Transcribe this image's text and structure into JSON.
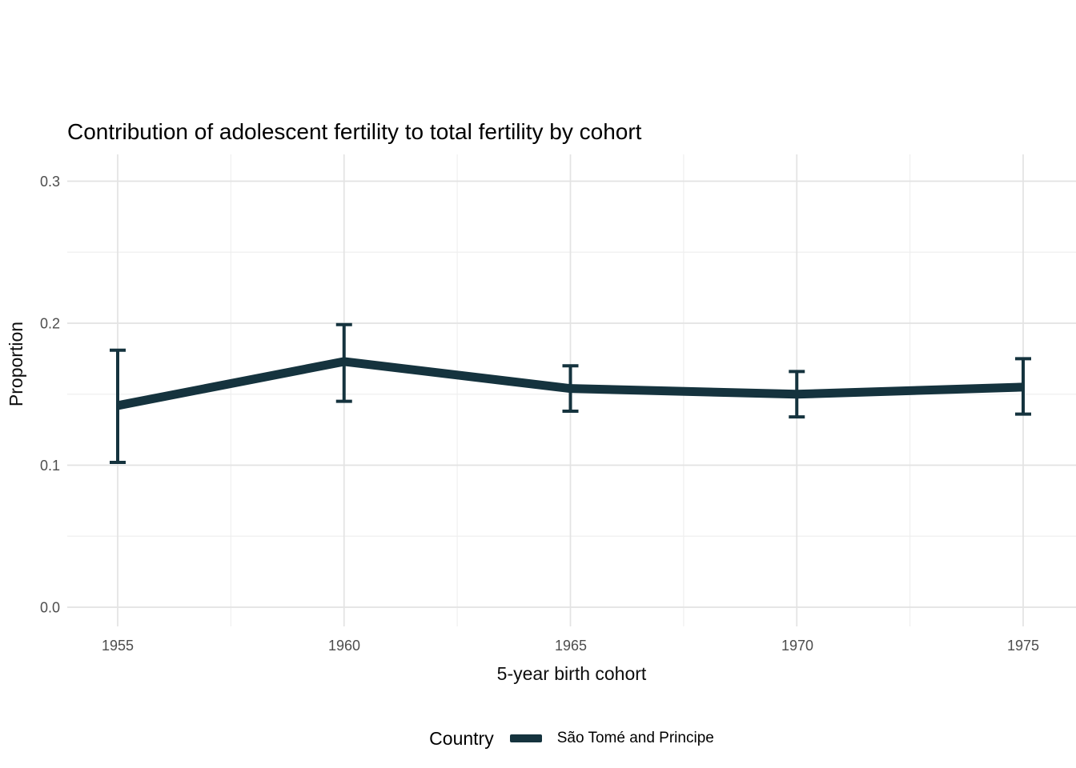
{
  "title": "Contribution of adolescent fertility to total fertility by cohort",
  "legend": {
    "title": "Country",
    "items": [
      {
        "label": "São Tomé and Principe",
        "swatch_color": "#15333E"
      }
    ]
  },
  "chart_data": {
    "type": "line",
    "title": "Contribution of adolescent fertility to total fertility by cohort",
    "xlabel": "5-year birth cohort",
    "ylabel": "Proportion",
    "categories": [
      1955,
      1960,
      1965,
      1970,
      1975
    ],
    "x_tick_labels": [
      "1955",
      "1960",
      "1965",
      "1970",
      "1975"
    ],
    "y_ticks": [
      0.0,
      0.1,
      0.2,
      0.3
    ],
    "y_tick_labels": [
      "0.0",
      "0.1",
      "0.2",
      "0.3"
    ],
    "y_minor_ticks": [
      0.05,
      0.15,
      0.25
    ],
    "x_minor_ticks": [
      1957.5,
      1962.5,
      1967.5,
      1972.5
    ],
    "ylim": [
      0.0,
      0.3
    ],
    "grid": "major-and-minor",
    "legend_position": "bottom",
    "colors": {
      "series": "#15333E",
      "grid_major": "#e3e3e3",
      "grid_minor": "#efefef",
      "tick_text": "#4d4d4d"
    },
    "series": [
      {
        "name": "São Tomé and Principe",
        "color": "#15333E",
        "values": [
          0.142,
          0.173,
          0.154,
          0.15,
          0.155
        ],
        "ci_low": [
          0.102,
          0.145,
          0.138,
          0.134,
          0.136
        ],
        "ci_high": [
          0.181,
          0.199,
          0.17,
          0.166,
          0.175
        ]
      }
    ]
  }
}
